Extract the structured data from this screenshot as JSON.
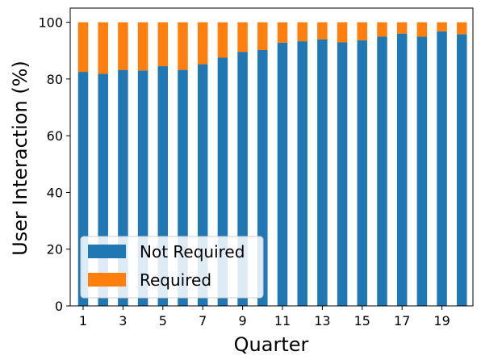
{
  "chart_data": {
    "type": "bar",
    "stacked": true,
    "xlabel": "Quarter",
    "ylabel": "User Interaction (%)",
    "categories": [
      1,
      2,
      3,
      4,
      5,
      6,
      7,
      8,
      9,
      10,
      11,
      12,
      13,
      14,
      15,
      16,
      17,
      18,
      19,
      20
    ],
    "x_tick_labels": [
      "1",
      "3",
      "5",
      "7",
      "9",
      "11",
      "13",
      "15",
      "17",
      "19"
    ],
    "ylim": [
      0,
      105
    ],
    "y_ticks": [
      0,
      20,
      40,
      60,
      80,
      100
    ],
    "grid": false,
    "legend_position": "lower-left",
    "series": [
      {
        "name": "Not Required",
        "color": "#1f77b4",
        "values": [
          82.5,
          81.8,
          83.2,
          83.0,
          84.5,
          83.2,
          85.2,
          87.5,
          89.5,
          90.2,
          92.8,
          93.3,
          94.0,
          92.9,
          93.6,
          94.9,
          96.0,
          94.9,
          96.8,
          95.8
        ]
      },
      {
        "name": "Required",
        "color": "#ff7f0e",
        "values": [
          17.5,
          18.2,
          16.8,
          17.0,
          15.5,
          16.8,
          14.8,
          12.5,
          10.5,
          9.8,
          7.2,
          6.7,
          6.0,
          7.1,
          6.4,
          5.1,
          4.0,
          5.1,
          3.2,
          4.2
        ]
      }
    ]
  }
}
